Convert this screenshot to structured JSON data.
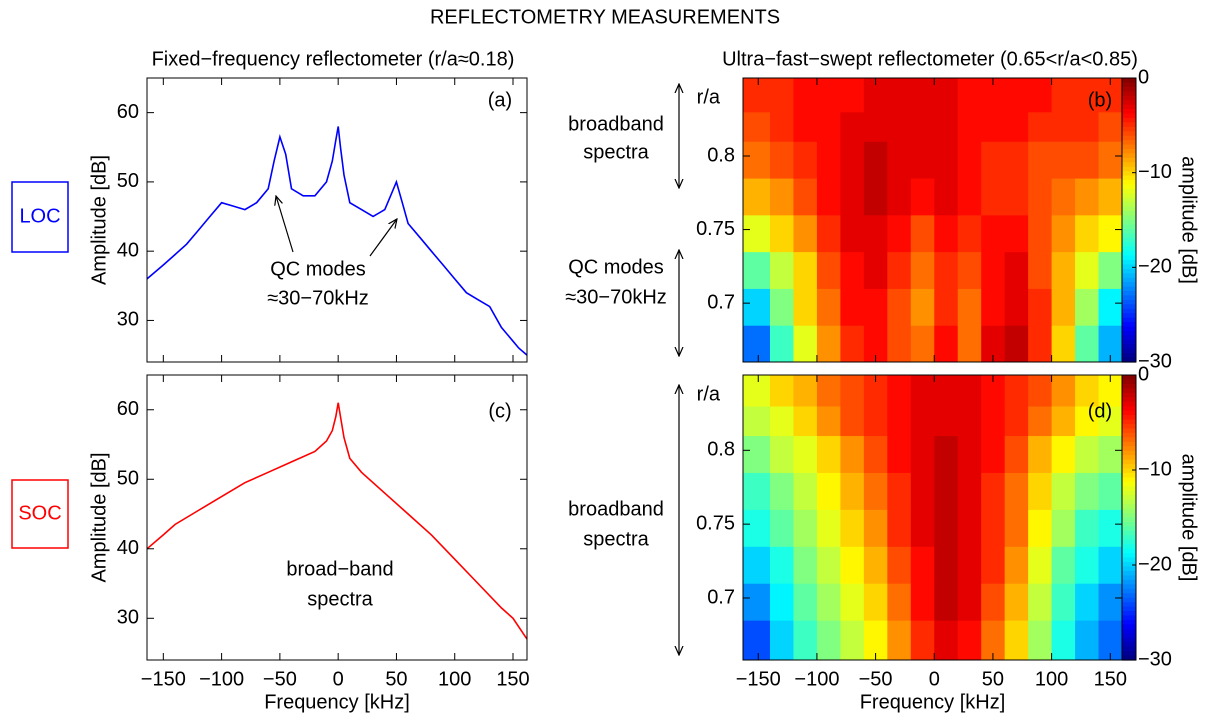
{
  "title": "REFLECTOMETRY  MEASUREMENTS",
  "column_titles": [
    "Fixed−frequency reflectometer (r/a≈0.18)",
    "Ultra−fast−swept reflectometer (0.65<r/a<0.85)"
  ],
  "row_labels": [
    "LOC",
    "SOC"
  ],
  "chart_data": [
    {
      "type": "line",
      "label": "(a)",
      "ylabel": "Amplitude [dB]",
      "color": "#0000ff",
      "x": [
        -164,
        -150,
        -140,
        -130,
        -120,
        -110,
        -100,
        -90,
        -80,
        -70,
        -60,
        -55,
        -50,
        -45,
        -40,
        -30,
        -20,
        -10,
        -5,
        -2,
        0,
        2,
        5,
        10,
        20,
        30,
        40,
        45,
        50,
        55,
        60,
        70,
        80,
        90,
        100,
        110,
        120,
        130,
        140,
        150,
        155,
        162
      ],
      "values": [
        36,
        38,
        39.5,
        41,
        43,
        45,
        47,
        46.5,
        46,
        47,
        49,
        53,
        56.5,
        54,
        49,
        48,
        48,
        50,
        53,
        56,
        58,
        55,
        51,
        47,
        46,
        45,
        46,
        48,
        50,
        47,
        44,
        42,
        40,
        38,
        36,
        34,
        33,
        32,
        29,
        27,
        26,
        25
      ],
      "xlim": [
        -164,
        162
      ],
      "ylim": [
        24,
        65
      ],
      "xticks": [
        -150,
        -100,
        -50,
        0,
        50,
        100,
        150
      ],
      "yticks": [
        30,
        40,
        50,
        60
      ],
      "annotations": [
        "QC modes",
        "≈30−70kHz"
      ]
    },
    {
      "type": "heatmap",
      "label": "(b)",
      "colormap": "jet",
      "clim": [
        -30,
        0
      ],
      "xbins": [
        -163,
        -140,
        -120,
        -100,
        -80,
        -60,
        -40,
        -20,
        0,
        20,
        40,
        60,
        80,
        100,
        120,
        140,
        160
      ],
      "ybins": [
        0.66,
        0.685,
        0.71,
        0.735,
        0.76,
        0.785,
        0.81,
        0.83,
        0.853
      ],
      "values": [
        [
          -23,
          -17,
          -12,
          -8,
          -5,
          -4,
          -6,
          -7,
          -4,
          -7,
          -3,
          -2,
          -5,
          -10,
          -16,
          -21
        ],
        [
          -20,
          -15,
          -10,
          -7,
          -4,
          -4,
          -6,
          -8,
          -5,
          -7,
          -4,
          -3,
          -5,
          -9,
          -14,
          -19
        ],
        [
          -16,
          -13,
          -10,
          -6,
          -4,
          -3,
          -5,
          -7,
          -5,
          -6,
          -4,
          -3,
          -6,
          -9,
          -12,
          -15
        ],
        [
          -12,
          -10,
          -8,
          -5,
          -3,
          -3,
          -4,
          -6,
          -4,
          -5,
          -4,
          -4,
          -6,
          -8,
          -10,
          -11
        ],
        [
          -9,
          -8,
          -6,
          -4,
          -3,
          -2,
          -3,
          -4,
          -3,
          -4,
          -5,
          -5,
          -6,
          -7,
          -8,
          -9
        ],
        [
          -7,
          -6,
          -5,
          -4,
          -3,
          -2,
          -3,
          -3,
          -3,
          -4,
          -5,
          -5,
          -6,
          -6,
          -6,
          -7
        ],
        [
          -6,
          -5,
          -4,
          -4,
          -3,
          -3,
          -3,
          -3,
          -3,
          -4,
          -4,
          -4,
          -5,
          -5,
          -5,
          -6
        ],
        [
          -5,
          -5,
          -4,
          -4,
          -4,
          -3,
          -3,
          -3,
          -3,
          -4,
          -4,
          -4,
          -4,
          -5,
          -5,
          -5
        ]
      ],
      "xlim": [
        -163,
        160
      ],
      "ylim": [
        0.66,
        0.853
      ],
      "xticks": [
        -150,
        -100,
        -50,
        0,
        50,
        100,
        150
      ],
      "yticks": [
        0.7,
        0.75,
        0.8
      ],
      "ytick_header": "r/a",
      "cticks": [
        0,
        {
          "value": -10,
          "label": "−10"
        },
        {
          "value": -20,
          "label": "−20"
        },
        {
          "value": -30,
          "label": "−30"
        }
      ],
      "colorbar_label": "amplitude [dB]",
      "annotations": [
        "broadband",
        "spectra",
        "QC modes",
        "≈30−70kHz"
      ]
    },
    {
      "type": "line",
      "label": "(c)",
      "ylabel": "Amplitude [dB]",
      "xlabel": "Frequency [kHz]",
      "color": "#ff0000",
      "x": [
        -164,
        -150,
        -140,
        -120,
        -100,
        -80,
        -60,
        -40,
        -20,
        -10,
        -5,
        -2,
        0,
        2,
        5,
        10,
        20,
        40,
        60,
        80,
        100,
        120,
        140,
        150,
        162
      ],
      "values": [
        40,
        42,
        43.5,
        45.5,
        47.5,
        49.5,
        51,
        52.5,
        54,
        55.5,
        57,
        59,
        61,
        59,
        56,
        53,
        51,
        48,
        45,
        42,
        38.5,
        35,
        31.5,
        30,
        27
      ],
      "xlim": [
        -164,
        162
      ],
      "ylim": [
        24,
        65
      ],
      "xticks": [
        {
          "value": -150,
          "label": "−150"
        },
        {
          "value": -100,
          "label": "−100"
        },
        {
          "value": -50,
          "label": "−50"
        },
        0,
        50,
        100,
        150
      ],
      "yticks": [
        30,
        40,
        50,
        60
      ],
      "annotations": [
        "broad−band",
        "spectra"
      ]
    },
    {
      "type": "heatmap",
      "label": "(d)",
      "xlabel": "Frequency [kHz]",
      "colormap": "jet",
      "clim": [
        -30,
        0
      ],
      "xbins": [
        -163,
        -140,
        -120,
        -100,
        -80,
        -60,
        -40,
        -20,
        0,
        20,
        40,
        60,
        80,
        100,
        120,
        140,
        160
      ],
      "ybins": [
        0.658,
        0.685,
        0.71,
        0.735,
        0.76,
        0.785,
        0.81,
        0.83,
        0.851
      ],
      "values": [
        [
          -24,
          -20,
          -17,
          -15,
          -13,
          -11,
          -8,
          -5,
          -3,
          -4,
          -7,
          -10,
          -14,
          -18,
          -21,
          -23
        ],
        [
          -22,
          -19,
          -16,
          -14,
          -12,
          -10,
          -7,
          -4,
          -2,
          -3,
          -6,
          -9,
          -13,
          -17,
          -20,
          -22
        ],
        [
          -20,
          -18,
          -15,
          -13,
          -11,
          -9,
          -6,
          -4,
          -2,
          -3,
          -5,
          -8,
          -12,
          -16,
          -18,
          -20
        ],
        [
          -18,
          -16,
          -14,
          -12,
          -10,
          -8,
          -5,
          -3,
          -2,
          -3,
          -5,
          -7,
          -11,
          -14,
          -17,
          -18
        ],
        [
          -17,
          -15,
          -13,
          -11,
          -9,
          -7,
          -5,
          -3,
          -2,
          -3,
          -5,
          -7,
          -10,
          -13,
          -15,
          -16
        ],
        [
          -15,
          -13,
          -12,
          -10,
          -8,
          -6,
          -4,
          -3,
          -2,
          -3,
          -4,
          -6,
          -9,
          -11,
          -13,
          -14
        ],
        [
          -13,
          -12,
          -10,
          -8,
          -6,
          -5,
          -4,
          -3,
          -3,
          -3,
          -4,
          -5,
          -7,
          -9,
          -11,
          -12
        ],
        [
          -12,
          -10,
          -9,
          -7,
          -6,
          -5,
          -4,
          -3,
          -3,
          -3,
          -4,
          -5,
          -6,
          -8,
          -10,
          -11
        ]
      ],
      "xlim": [
        -163,
        160
      ],
      "ylim": [
        0.658,
        0.851
      ],
      "xticks": [
        {
          "value": -150,
          "label": "−150"
        },
        {
          "value": -100,
          "label": "−100"
        },
        {
          "value": -50,
          "label": "−50"
        },
        0,
        50,
        100,
        150
      ],
      "yticks": [
        0.7,
        0.75,
        0.8
      ],
      "ytick_header": "r/a",
      "cticks": [
        0,
        {
          "value": -10,
          "label": "−10"
        },
        {
          "value": -20,
          "label": "−20"
        },
        {
          "value": -30,
          "label": "−30"
        }
      ],
      "colorbar_label": "amplitude [dB]",
      "annotations": [
        "broadband",
        "spectra"
      ]
    }
  ]
}
